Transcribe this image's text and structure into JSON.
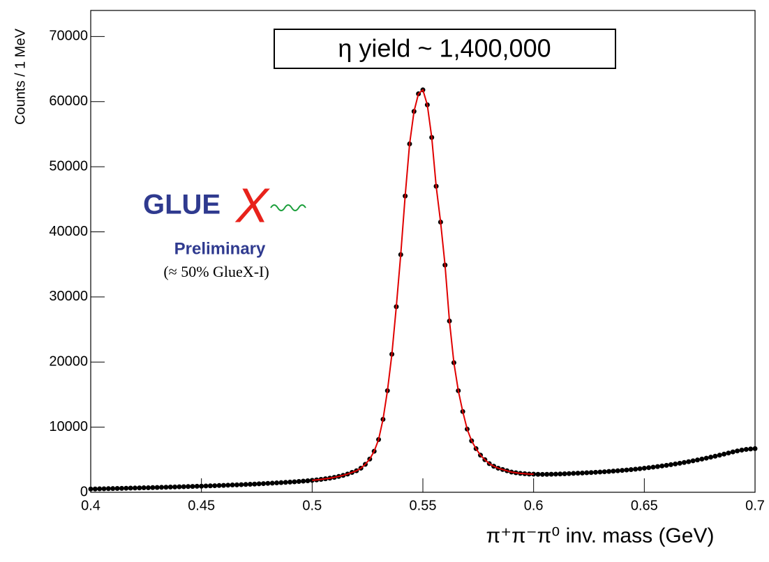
{
  "chart_data": {
    "type": "scatter",
    "ylabel": "Counts / 1 MeV",
    "xlabel": "π⁺π⁻π⁰ inv. mass (GeV)",
    "annotation": "η yield ~ 1,400,000",
    "logo_text": "GLUE",
    "logo_x": "X",
    "logo_sub": "Preliminary",
    "logo_note": "(≈ 50% GlueX-I)",
    "xlim": [
      0.4,
      0.7
    ],
    "ylim": [
      0,
      74000
    ],
    "xticks": [
      0.4,
      0.45,
      0.5,
      0.55,
      0.6,
      0.65,
      0.7
    ],
    "yticks": [
      0,
      10000,
      20000,
      30000,
      40000,
      50000,
      60000,
      70000
    ],
    "x": [
      0.4,
      0.402,
      0.404,
      0.406,
      0.408,
      0.41,
      0.412,
      0.414,
      0.416,
      0.418,
      0.42,
      0.422,
      0.424,
      0.426,
      0.428,
      0.43,
      0.432,
      0.434,
      0.436,
      0.438,
      0.44,
      0.442,
      0.444,
      0.446,
      0.448,
      0.45,
      0.452,
      0.454,
      0.456,
      0.458,
      0.46,
      0.462,
      0.464,
      0.466,
      0.468,
      0.47,
      0.472,
      0.474,
      0.476,
      0.478,
      0.48,
      0.482,
      0.484,
      0.486,
      0.488,
      0.49,
      0.492,
      0.494,
      0.496,
      0.498,
      0.5,
      0.502,
      0.504,
      0.506,
      0.508,
      0.51,
      0.512,
      0.514,
      0.516,
      0.518,
      0.52,
      0.522,
      0.524,
      0.526,
      0.528,
      0.53,
      0.532,
      0.534,
      0.536,
      0.538,
      0.54,
      0.542,
      0.544,
      0.546,
      0.548,
      0.55,
      0.552,
      0.554,
      0.556,
      0.558,
      0.56,
      0.562,
      0.564,
      0.566,
      0.568,
      0.57,
      0.572,
      0.574,
      0.576,
      0.578,
      0.58,
      0.582,
      0.584,
      0.586,
      0.588,
      0.59,
      0.592,
      0.594,
      0.596,
      0.598,
      0.6,
      0.602,
      0.604,
      0.606,
      0.608,
      0.61,
      0.612,
      0.614,
      0.616,
      0.618,
      0.62,
      0.622,
      0.624,
      0.626,
      0.628,
      0.63,
      0.632,
      0.634,
      0.636,
      0.638,
      0.64,
      0.642,
      0.644,
      0.646,
      0.648,
      0.65,
      0.652,
      0.654,
      0.656,
      0.658,
      0.66,
      0.662,
      0.664,
      0.666,
      0.668,
      0.67,
      0.672,
      0.674,
      0.676,
      0.678,
      0.68,
      0.682,
      0.684,
      0.686,
      0.688,
      0.69,
      0.692,
      0.694,
      0.696,
      0.698,
      0.7
    ],
    "series": [
      {
        "color": "#000000",
        "values": [
          500,
          510,
          530,
          540,
          560,
          570,
          590,
          600,
          620,
          640,
          650,
          670,
          690,
          700,
          720,
          740,
          760,
          780,
          800,
          820,
          840,
          860,
          880,
          900,
          920,
          940,
          970,
          990,
          1010,
          1040,
          1060,
          1090,
          1120,
          1140,
          1170,
          1200,
          1230,
          1260,
          1300,
          1330,
          1370,
          1400,
          1440,
          1480,
          1520,
          1570,
          1610,
          1660,
          1710,
          1770,
          1830,
          1900,
          1980,
          2070,
          2170,
          2290,
          2430,
          2600,
          2800,
          3050,
          3300,
          3700,
          4300,
          5100,
          6300,
          8100,
          11200,
          15600,
          21200,
          28500,
          36500,
          45500,
          53500,
          58500,
          61200,
          61800,
          59500,
          54500,
          47000,
          41500,
          34900,
          26300,
          19900,
          15600,
          12400,
          9700,
          7900,
          6700,
          5700,
          5000,
          4400,
          4000,
          3700,
          3500,
          3300,
          3100,
          3000,
          2900,
          2850,
          2800,
          2780,
          2760,
          2750,
          2760,
          2770,
          2790,
          2810,
          2840,
          2870,
          2900,
          2930,
          2960,
          3000,
          3030,
          3070,
          3110,
          3150,
          3200,
          3250,
          3300,
          3360,
          3420,
          3480,
          3550,
          3620,
          3700,
          3780,
          3860,
          3950,
          4040,
          4140,
          4240,
          4350,
          4460,
          4580,
          4700,
          4830,
          4960,
          5100,
          5240,
          5390,
          5540,
          5700,
          5860,
          6030,
          6200,
          6350,
          6480,
          6580,
          6650,
          6700
        ]
      },
      {
        "color": "#e00000",
        "line": true,
        "x": [
          0.5,
          0.502,
          0.504,
          0.506,
          0.508,
          0.51,
          0.512,
          0.514,
          0.516,
          0.518,
          0.52,
          0.522,
          0.524,
          0.526,
          0.528,
          0.53,
          0.532,
          0.534,
          0.536,
          0.538,
          0.54,
          0.542,
          0.544,
          0.546,
          0.548,
          0.55,
          0.552,
          0.554,
          0.556,
          0.558,
          0.56,
          0.562,
          0.564,
          0.566,
          0.568,
          0.57,
          0.572,
          0.574,
          0.576,
          0.578,
          0.58,
          0.582,
          0.584,
          0.586,
          0.588,
          0.59,
          0.592,
          0.594,
          0.596,
          0.598,
          0.6
        ],
        "values": [
          1830,
          1900,
          1980,
          2070,
          2170,
          2290,
          2430,
          2600,
          2800,
          3050,
          3300,
          3700,
          4300,
          5100,
          6300,
          8100,
          11200,
          15600,
          21200,
          28500,
          36500,
          45500,
          53500,
          58500,
          61200,
          61800,
          59500,
          54500,
          47000,
          41500,
          34900,
          26300,
          19900,
          15600,
          12400,
          9700,
          7900,
          6700,
          5700,
          5000,
          4400,
          4000,
          3700,
          3500,
          3300,
          3100,
          3000,
          2900,
          2850,
          2800,
          2780
        ]
      }
    ]
  }
}
